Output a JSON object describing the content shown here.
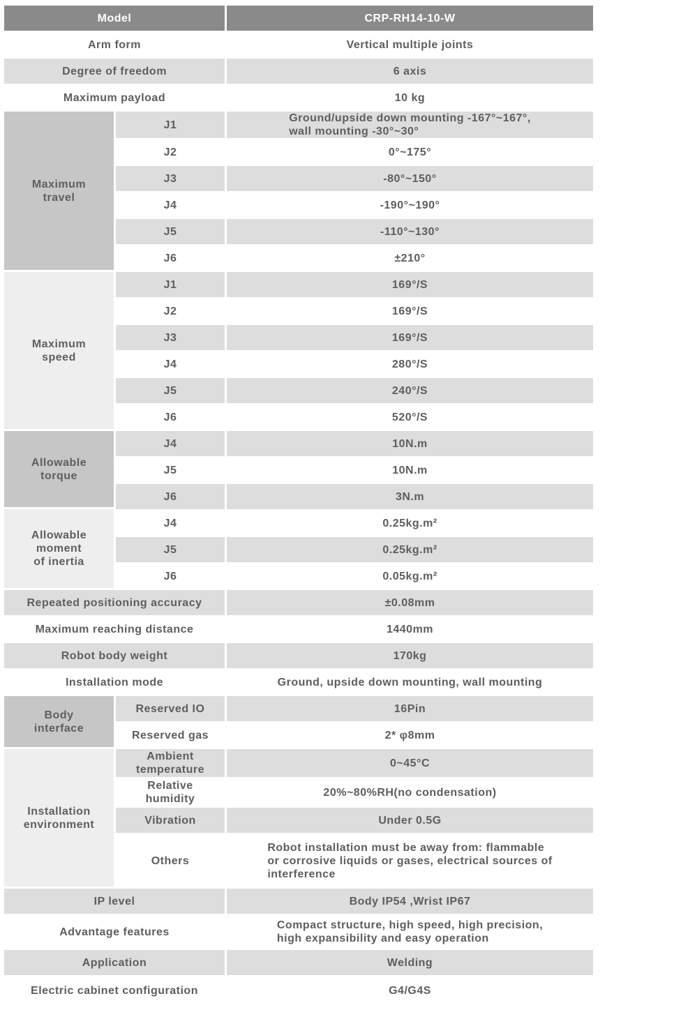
{
  "colors": {
    "header_bg": "#8a8a8a",
    "header_text": "#ffffff",
    "row_gray": "#dcdddc",
    "group_dark": "#c5c6c5",
    "group_light": "#eeeeee",
    "text": "#5d5e60"
  },
  "table": {
    "model_row": {
      "label": "Model",
      "value": "CRP-RH14-10-W"
    },
    "top_rows": [
      {
        "label": "Arm form",
        "value": "Vertical multiple joints"
      },
      {
        "label": "Degree of freedom",
        "value": "6 axis"
      },
      {
        "label": "Maximum payload",
        "value": "10 kg"
      }
    ],
    "maximum_travel": {
      "label": "Maximum\ntravel",
      "rows": [
        {
          "joint": "J1",
          "value": "Ground/upside down mounting -167°~167°,\nwall mounting -30°~30°"
        },
        {
          "joint": "J2",
          "value": "0°~175°"
        },
        {
          "joint": "J3",
          "value": "-80°~150°"
        },
        {
          "joint": "J4",
          "value": "-190°~190°"
        },
        {
          "joint": "J5",
          "value": "-110°~130°"
        },
        {
          "joint": "J6",
          "value": "±210°"
        }
      ]
    },
    "maximum_speed": {
      "label": "Maximum\nspeed",
      "rows": [
        {
          "joint": "J1",
          "value": "169°/S"
        },
        {
          "joint": "J2",
          "value": "169°/S"
        },
        {
          "joint": "J3",
          "value": "169°/S"
        },
        {
          "joint": "J4",
          "value": "280°/S"
        },
        {
          "joint": "J5",
          "value": "240°/S"
        },
        {
          "joint": "J6",
          "value": "520°/S"
        }
      ]
    },
    "allowable_torque": {
      "label": "Allowable\ntorque",
      "rows": [
        {
          "joint": "J4",
          "value": "10N.m"
        },
        {
          "joint": "J5",
          "value": "10N.m"
        },
        {
          "joint": "J6",
          "value": "3N.m"
        }
      ]
    },
    "allowable_inertia": {
      "label": "Allowable\nmoment\nof inertia",
      "rows": [
        {
          "joint": "J4",
          "value": "0.25kg.m²"
        },
        {
          "joint": "J5",
          "value": "0.25kg.m²"
        },
        {
          "joint": "J6",
          "value": "0.05kg.m²"
        }
      ]
    },
    "mid_rows": [
      {
        "label": "Repeated positioning accuracy",
        "value": "±0.08mm"
      },
      {
        "label": "Maximum reaching distance",
        "value": "1440mm"
      },
      {
        "label": "Robot body weight",
        "value": "170kg"
      },
      {
        "label": "Installation mode",
        "value": "Ground, upside down mounting, wall mounting"
      }
    ],
    "body_interface": {
      "label": "Body\ninterface",
      "rows": [
        {
          "name": "Reserved IO",
          "value": "16Pin"
        },
        {
          "name": "Reserved gas",
          "value": "2* φ8mm"
        }
      ]
    },
    "installation_environment": {
      "label": "Installation\nenvironment",
      "rows": [
        {
          "name": "Ambient\ntemperature",
          "value": "0~45°C"
        },
        {
          "name": "Relative\nhumidity",
          "value": "20%~80%RH(no condensation)"
        },
        {
          "name": "Vibration",
          "value": "Under 0.5G"
        },
        {
          "name": "Others",
          "value": "Robot installation must be away from: flammable\nor corrosive liquids or gases, electrical sources of\ninterference"
        }
      ]
    },
    "bottom_rows": [
      {
        "label": "IP level",
        "value": "Body IP54 ,Wrist IP67"
      },
      {
        "label": "Advantage features",
        "value": "Compact structure, high speed, high precision,\nhigh expansibility and easy operation"
      },
      {
        "label": "Application",
        "value": "Welding"
      },
      {
        "label": "Electric cabinet configuration",
        "value": "G4/G4S"
      }
    ]
  }
}
